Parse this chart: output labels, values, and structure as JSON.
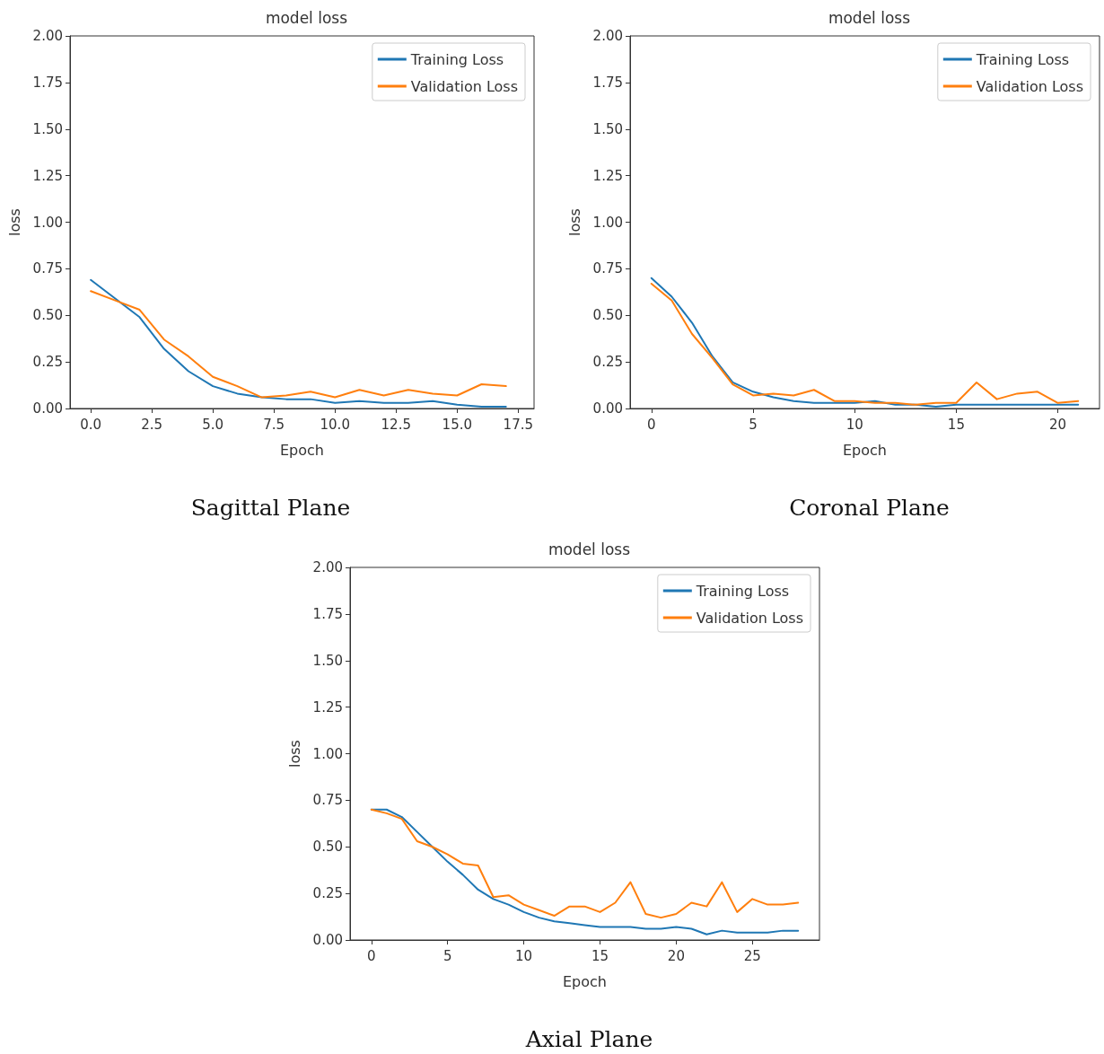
{
  "chart_data": [
    {
      "type": "line",
      "title": "model loss",
      "xlabel": "Epoch",
      "ylabel": "loss",
      "annotations": [
        "Sagittal Plane"
      ],
      "legend": "top right",
      "grid": false,
      "x": [
        0,
        1,
        2,
        3,
        4,
        5,
        6,
        7,
        8,
        9,
        10,
        11,
        12,
        13,
        14,
        15,
        16,
        17
      ],
      "xlim": [
        -0.85,
        18.15
      ],
      "xticks": [
        {
          "value": 0,
          "label": "0.0"
        },
        2.5,
        {
          "value": 5,
          "label": "5.0"
        },
        7.5,
        {
          "value": 10,
          "label": "10.0"
        },
        12.5,
        {
          "value": 15,
          "label": "15.0"
        },
        17.5
      ],
      "ylim": [
        0,
        2
      ],
      "yticks": [
        {
          "value": 0,
          "label": "0.00"
        },
        {
          "value": 0.25,
          "label": "0.25"
        },
        {
          "value": 0.5,
          "label": "0.50"
        },
        {
          "value": 0.75,
          "label": "0.75"
        },
        {
          "value": 1,
          "label": "1.00"
        },
        {
          "value": 1.25,
          "label": "1.25"
        },
        {
          "value": 1.5,
          "label": "1.50"
        },
        {
          "value": 1.75,
          "label": "1.75"
        },
        {
          "value": 2,
          "label": "2.00"
        }
      ],
      "series": [
        {
          "name": "Training Loss",
          "color": "#1f77b4",
          "values": [
            0.69,
            0.59,
            0.49,
            0.32,
            0.2,
            0.12,
            0.08,
            0.06,
            0.05,
            0.05,
            0.03,
            0.04,
            0.03,
            0.03,
            0.04,
            0.02,
            0.01,
            0.01
          ]
        },
        {
          "name": "Validation Loss",
          "color": "#ff7f0e",
          "values": [
            0.63,
            0.58,
            0.53,
            0.37,
            0.28,
            0.17,
            0.12,
            0.06,
            0.07,
            0.09,
            0.06,
            0.1,
            0.07,
            0.1,
            0.08,
            0.07,
            0.13,
            0.12
          ]
        }
      ]
    },
    {
      "type": "line",
      "title": "model loss",
      "xlabel": "Epoch",
      "ylabel": "loss",
      "annotations": [
        "Coronal Plane"
      ],
      "legend": "top right",
      "grid": false,
      "x": [
        0,
        1,
        2,
        3,
        4,
        5,
        6,
        7,
        8,
        9,
        10,
        11,
        12,
        13,
        14,
        15,
        16,
        17,
        18,
        19,
        20,
        21
      ],
      "xlim": [
        -1.05,
        22.05
      ],
      "xticks": [
        0,
        5,
        10,
        15,
        20
      ],
      "ylim": [
        0,
        2
      ],
      "yticks": [
        {
          "value": 0,
          "label": "0.00"
        },
        {
          "value": 0.25,
          "label": "0.25"
        },
        {
          "value": 0.5,
          "label": "0.50"
        },
        {
          "value": 0.75,
          "label": "0.75"
        },
        {
          "value": 1,
          "label": "1.00"
        },
        {
          "value": 1.25,
          "label": "1.25"
        },
        {
          "value": 1.5,
          "label": "1.50"
        },
        {
          "value": 1.75,
          "label": "1.75"
        },
        {
          "value": 2,
          "label": "2.00"
        }
      ],
      "series": [
        {
          "name": "Training Loss",
          "color": "#1f77b4",
          "values": [
            0.7,
            0.6,
            0.46,
            0.28,
            0.14,
            0.09,
            0.06,
            0.04,
            0.03,
            0.03,
            0.03,
            0.04,
            0.02,
            0.02,
            0.01,
            0.02,
            0.02,
            0.02,
            0.02,
            0.02,
            0.02,
            0.02
          ]
        },
        {
          "name": "Validation Loss",
          "color": "#ff7f0e",
          "values": [
            0.67,
            0.58,
            0.4,
            0.27,
            0.13,
            0.07,
            0.08,
            0.07,
            0.1,
            0.04,
            0.04,
            0.03,
            0.03,
            0.02,
            0.03,
            0.03,
            0.14,
            0.05,
            0.08,
            0.09,
            0.03,
            0.04
          ]
        }
      ]
    },
    {
      "type": "line",
      "title": "model loss",
      "xlabel": "Epoch",
      "ylabel": "loss",
      "annotations": [
        "Axial Plane"
      ],
      "legend": "top right",
      "grid": false,
      "x": [
        0,
        1,
        2,
        3,
        4,
        5,
        6,
        7,
        8,
        9,
        10,
        11,
        12,
        13,
        14,
        15,
        16,
        17,
        18,
        19,
        20,
        21,
        22,
        23,
        24,
        25,
        26,
        27,
        28
      ],
      "xlim": [
        -1.4,
        29.4
      ],
      "xticks": [
        0,
        5,
        10,
        15,
        20,
        25
      ],
      "ylim": [
        0,
        2
      ],
      "yticks": [
        {
          "value": 0,
          "label": "0.00"
        },
        {
          "value": 0.25,
          "label": "0.25"
        },
        {
          "value": 0.5,
          "label": "0.50"
        },
        {
          "value": 0.75,
          "label": "0.75"
        },
        {
          "value": 1,
          "label": "1.00"
        },
        {
          "value": 1.25,
          "label": "1.25"
        },
        {
          "value": 1.5,
          "label": "1.50"
        },
        {
          "value": 1.75,
          "label": "1.75"
        },
        {
          "value": 2,
          "label": "2.00"
        }
      ],
      "series": [
        {
          "name": "Training Loss",
          "color": "#1f77b4",
          "values": [
            0.7,
            0.7,
            0.66,
            0.58,
            0.5,
            0.42,
            0.35,
            0.27,
            0.22,
            0.19,
            0.15,
            0.12,
            0.1,
            0.09,
            0.08,
            0.07,
            0.07,
            0.07,
            0.06,
            0.06,
            0.07,
            0.06,
            0.03,
            0.05,
            0.04,
            0.04,
            0.04,
            0.05,
            0.05
          ]
        },
        {
          "name": "Validation Loss",
          "color": "#ff7f0e",
          "values": [
            0.7,
            0.68,
            0.65,
            0.53,
            0.5,
            0.46,
            0.41,
            0.4,
            0.23,
            0.24,
            0.19,
            0.16,
            0.13,
            0.18,
            0.18,
            0.15,
            0.2,
            0.31,
            0.14,
            0.12,
            0.14,
            0.2,
            0.18,
            0.31,
            0.15,
            0.22,
            0.19,
            0.19,
            0.2
          ]
        }
      ]
    }
  ]
}
